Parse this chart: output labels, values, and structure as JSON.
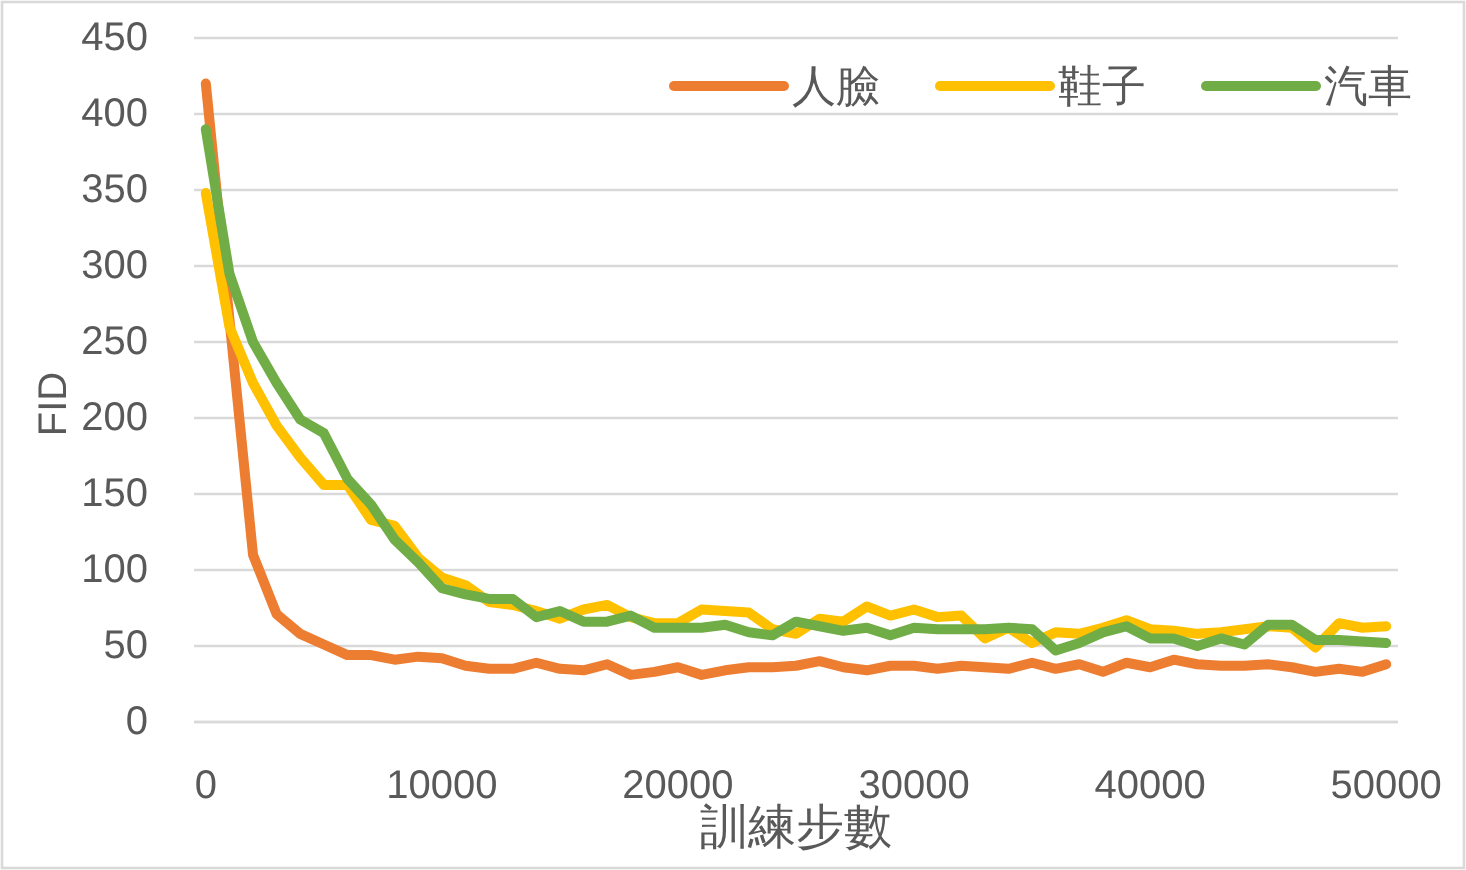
{
  "chart_data": {
    "type": "line",
    "xlabel": "訓練步數",
    "ylabel": "FID",
    "x": [
      0,
      1000,
      2000,
      3000,
      4000,
      5000,
      6000,
      7000,
      8000,
      9000,
      10000,
      11000,
      12000,
      13000,
      14000,
      15000,
      16000,
      17000,
      18000,
      19000,
      20000,
      21000,
      22000,
      23000,
      24000,
      25000,
      26000,
      27000,
      28000,
      29000,
      30000,
      31000,
      32000,
      33000,
      34000,
      35000,
      36000,
      37000,
      38000,
      39000,
      40000,
      41000,
      42000,
      43000,
      44000,
      45000,
      46000,
      47000,
      48000,
      49000,
      50000
    ],
    "series": [
      {
        "name": "人臉",
        "color": "#ed7d31",
        "values": [
          420,
          265,
          110,
          71,
          58,
          51,
          44,
          44,
          41,
          43,
          42,
          37,
          35,
          35,
          39,
          35,
          34,
          38,
          31,
          33,
          36,
          31,
          34,
          36,
          36,
          37,
          40,
          36,
          34,
          37,
          37,
          35,
          37,
          36,
          35,
          39,
          35,
          38,
          33,
          39,
          36,
          41,
          38,
          37,
          37,
          38,
          36,
          33,
          35,
          33,
          38
        ]
      },
      {
        "name": "鞋子",
        "color": "#ffc000",
        "values": [
          348,
          260,
          223,
          195,
          174,
          156,
          156,
          133,
          129,
          108,
          95,
          90,
          79,
          77,
          73,
          68,
          74,
          77,
          69,
          65,
          65,
          74,
          73,
          72,
          61,
          58,
          68,
          66,
          76,
          70,
          74,
          69,
          70,
          55,
          62,
          52,
          59,
          58,
          62,
          67,
          61,
          60,
          58,
          59,
          61,
          63,
          62,
          49,
          65,
          62,
          63
        ]
      },
      {
        "name": "汽車",
        "color": "#70ad47",
        "values": [
          390,
          295,
          250,
          223,
          199,
          190,
          160,
          143,
          120,
          105,
          88,
          84,
          81,
          81,
          69,
          73,
          66,
          66,
          70,
          62,
          62,
          62,
          64,
          59,
          57,
          66,
          63,
          60,
          62,
          57,
          62,
          61,
          61,
          61,
          62,
          61,
          47,
          52,
          59,
          63,
          55,
          55,
          50,
          55,
          51,
          64,
          64,
          54,
          54,
          53,
          52
        ]
      }
    ],
    "xlim": [
      -500,
      50500
    ],
    "xticks": [
      0,
      10000,
      20000,
      30000,
      40000,
      50000
    ],
    "ylim": [
      0,
      450
    ],
    "yticks": [
      0,
      50,
      100,
      150,
      200,
      250,
      300,
      350,
      400,
      450
    ],
    "grid": "y",
    "legend": "top right"
  }
}
